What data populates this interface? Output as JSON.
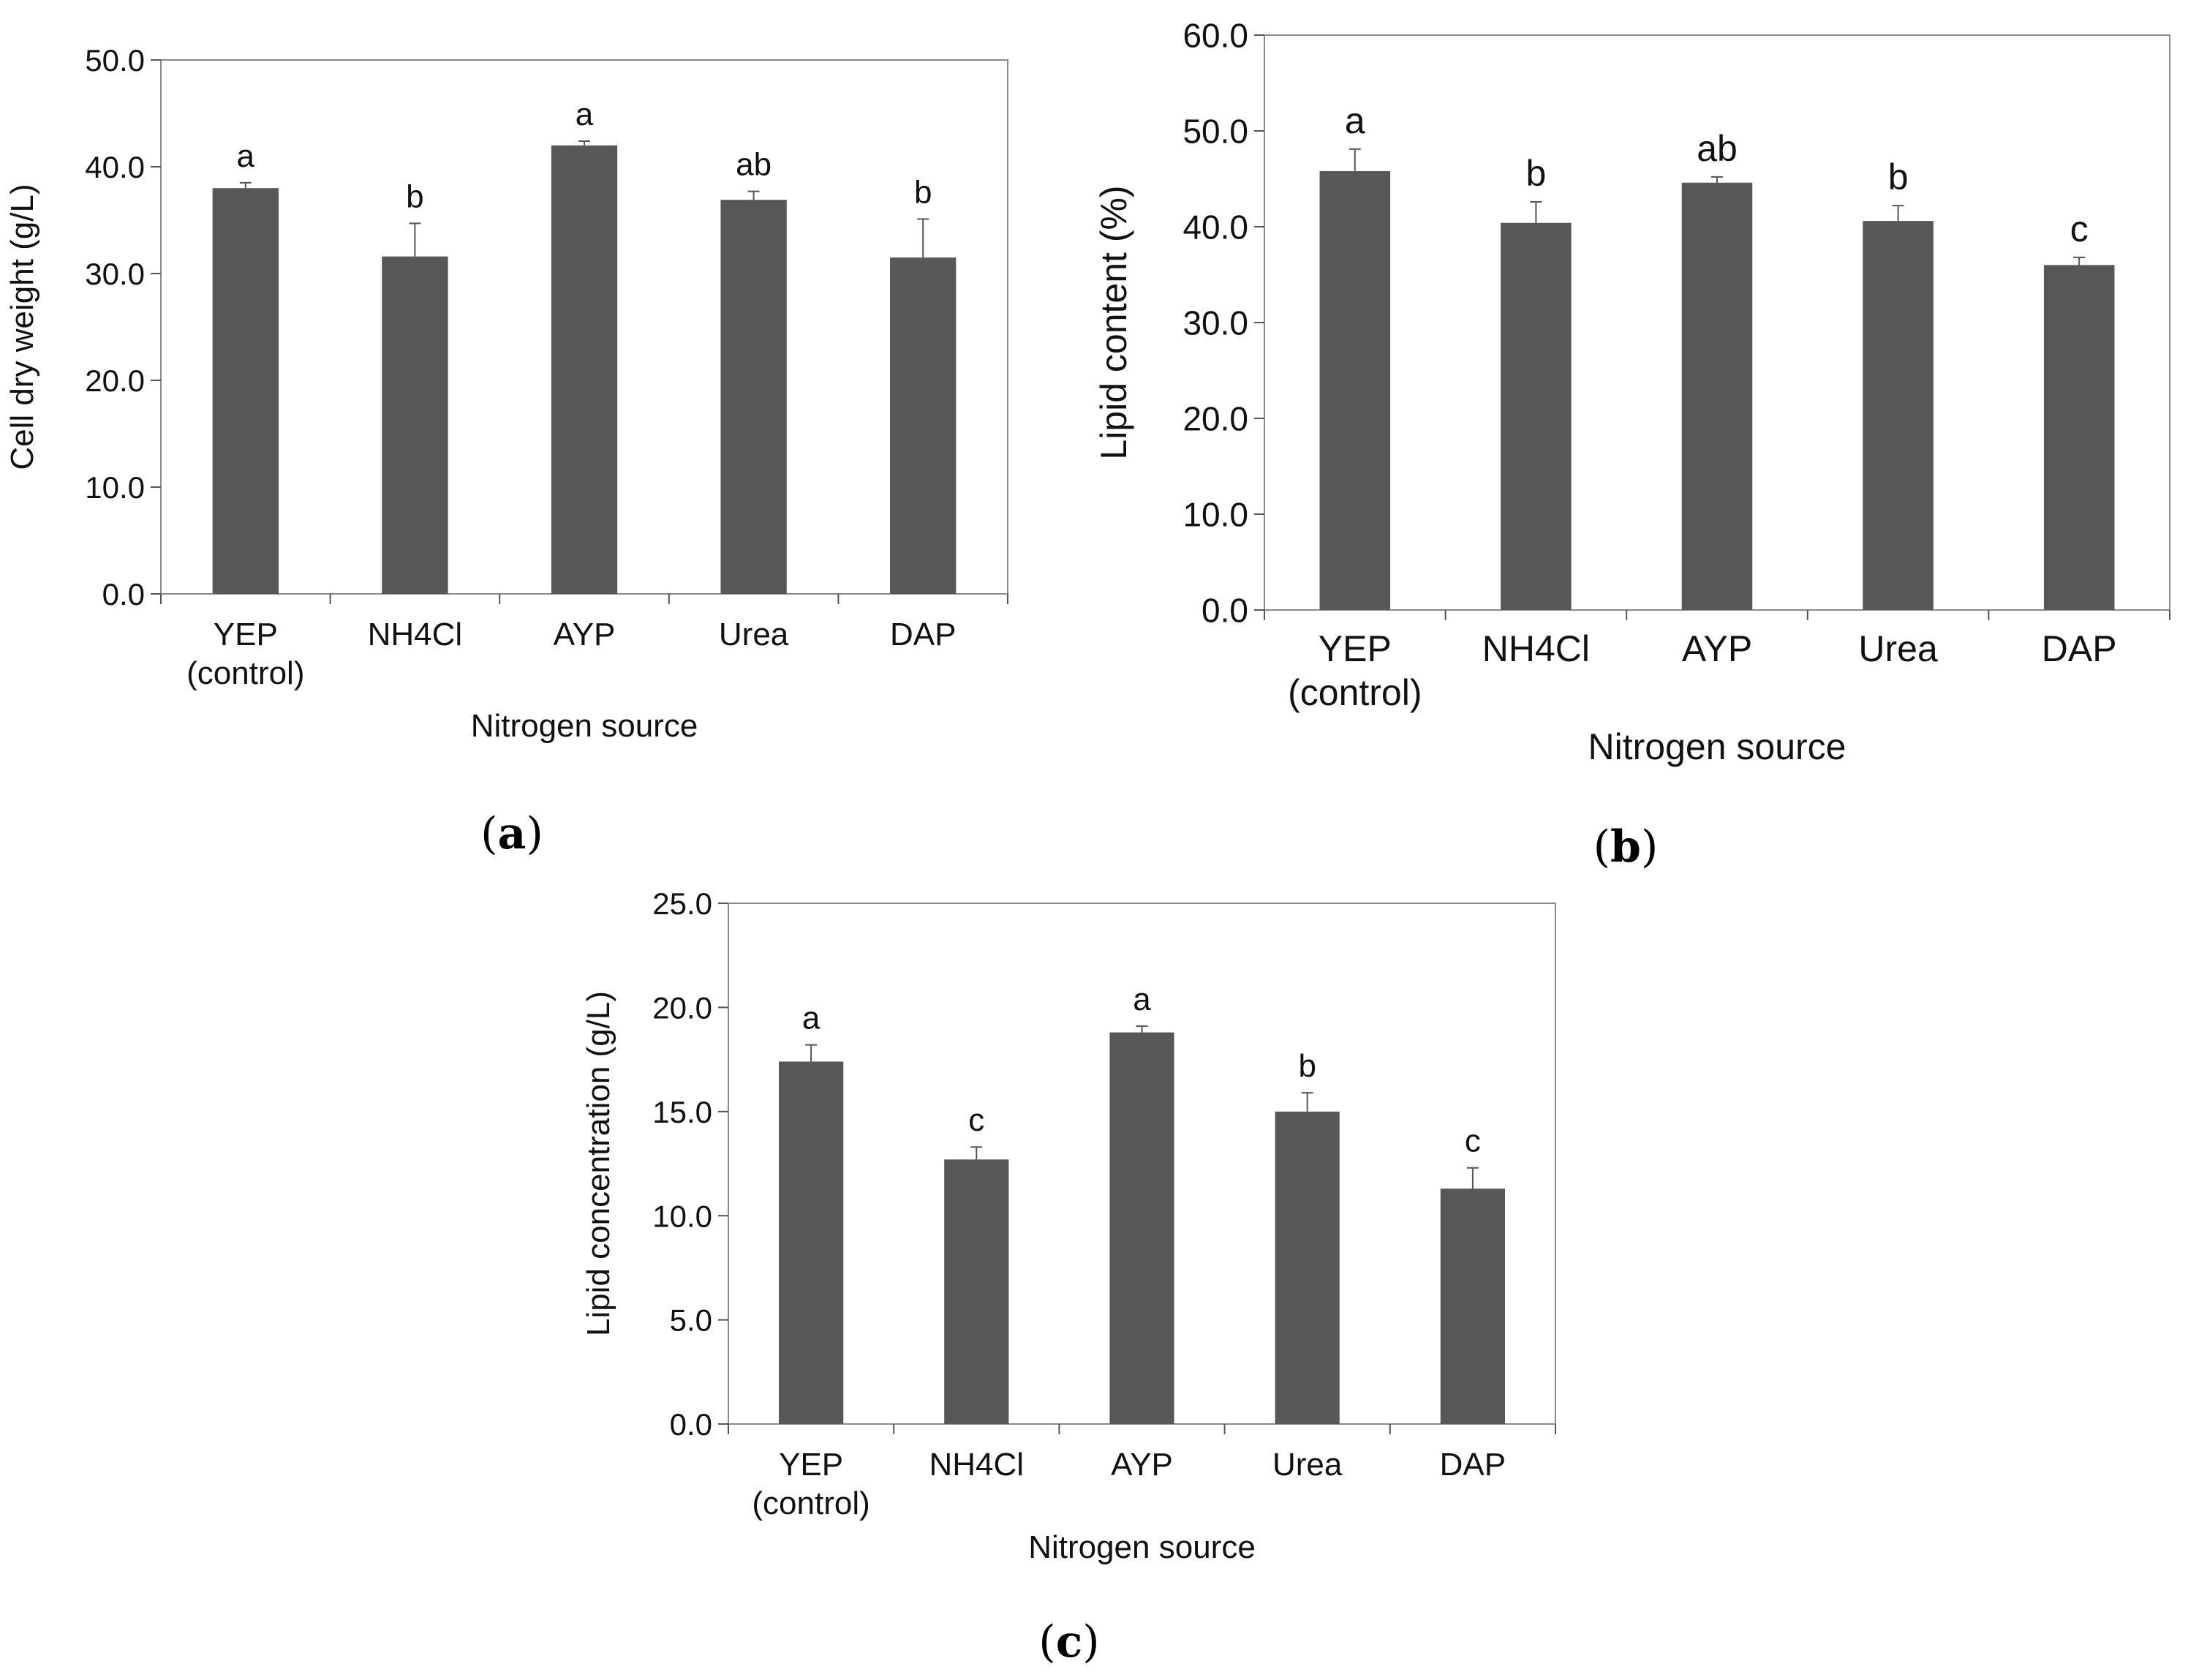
{
  "chart_data": [
    {
      "type": "bar",
      "panel_label": "a",
      "title": "",
      "xlabel": "Nitrogen source",
      "ylabel": "Cell dry weight (g/L)",
      "ylim": [
        0,
        50
      ],
      "yticks": [
        "0.0",
        "10.0",
        "20.0",
        "30.0",
        "40.0",
        "50.0"
      ],
      "categories": [
        [
          "YEP",
          "(control)"
        ],
        [
          "NH4Cl"
        ],
        [
          "AYP"
        ],
        [
          "Urea"
        ],
        [
          "DAP"
        ]
      ],
      "values": [
        38.0,
        31.6,
        42.0,
        36.9,
        31.5
      ],
      "errors": [
        0.5,
        3.1,
        0.4,
        0.8,
        3.6
      ],
      "significance": [
        "a",
        "b",
        "a",
        "ab",
        "b"
      ],
      "bar_color": "#575757",
      "grid": false
    },
    {
      "type": "bar",
      "panel_label": "b",
      "title": "",
      "xlabel": "Nitrogen source",
      "ylabel": "Lipid content (%)",
      "ylim": [
        0,
        60
      ],
      "yticks": [
        "0.0",
        "10.0",
        "20.0",
        "30.0",
        "40.0",
        "50.0",
        "60.0"
      ],
      "categories": [
        [
          "YEP",
          "(control)"
        ],
        [
          "NH4Cl"
        ],
        [
          "AYP"
        ],
        [
          "Urea"
        ],
        [
          "DAP"
        ]
      ],
      "values": [
        45.8,
        40.4,
        44.6,
        40.6,
        36.0
      ],
      "errors": [
        2.3,
        2.2,
        0.6,
        1.6,
        0.8
      ],
      "significance": [
        "a",
        "b",
        "ab",
        "b",
        "c"
      ],
      "bar_color": "#575757",
      "grid": false
    },
    {
      "type": "bar",
      "panel_label": "c",
      "title": "",
      "xlabel": "Nitrogen source",
      "ylabel": "Lipid concentration (g/L)",
      "ylim": [
        0,
        25
      ],
      "yticks": [
        "0.0",
        "5.0",
        "10.0",
        "15.0",
        "20.0",
        "25.0"
      ],
      "categories": [
        [
          "YEP",
          "(control)"
        ],
        [
          "NH4Cl"
        ],
        [
          "AYP"
        ],
        [
          "Urea"
        ],
        [
          "DAP"
        ]
      ],
      "values": [
        17.4,
        12.7,
        18.8,
        15.0,
        11.3
      ],
      "errors": [
        0.8,
        0.6,
        0.3,
        0.9,
        1.0
      ],
      "significance": [
        "a",
        "c",
        "a",
        "b",
        "c"
      ],
      "bar_color": "#575757",
      "grid": false
    }
  ]
}
